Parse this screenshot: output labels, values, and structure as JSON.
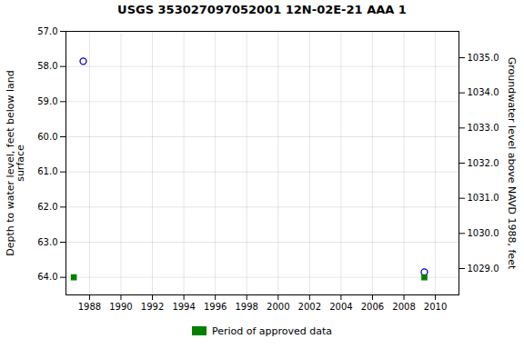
{
  "chart_data": {
    "type": "scatter",
    "title": "USGS 353027097052001 12N-02E-21 AAA 1",
    "ylabel": "Depth to water level, feet below land\nsurface",
    "y2label": "Groundwater level above NAVD 1988, feet",
    "x": [
      1987.0,
      1987.6,
      2009.3
    ],
    "series": [
      {
        "color": "#0000cc",
        "marker": "circle",
        "values": [
          null,
          57.85,
          63.85
        ]
      },
      {
        "name": "Period of approved data",
        "color": "#008000",
        "marker": "square",
        "values": [
          64.0,
          null,
          64.0
        ]
      }
    ],
    "xlim": [
      1986.5,
      2011.5
    ],
    "xticks": [
      1988,
      1990,
      1992,
      1994,
      1996,
      1998,
      2000,
      2002,
      2004,
      2006,
      2008,
      2010
    ],
    "ylim": [
      64.5,
      57.0
    ],
    "yticks": [
      {
        "value": 57.0,
        "label": "57.0"
      },
      {
        "value": 58.0,
        "label": "58.0"
      },
      {
        "value": 59.0,
        "label": "59.0"
      },
      {
        "value": 60.0,
        "label": "60.0"
      },
      {
        "value": 61.0,
        "label": "61.0"
      },
      {
        "value": 62.0,
        "label": "62.0"
      },
      {
        "value": 63.0,
        "label": "63.0"
      },
      {
        "value": 64.0,
        "label": "64.0"
      }
    ],
    "y2lim": [
      1028.25,
      1035.75
    ],
    "y2ticks": [
      {
        "value": 1029.0,
        "label": "1029.0"
      },
      {
        "value": 1030.0,
        "label": "1030.0"
      },
      {
        "value": 1031.0,
        "label": "1031.0"
      },
      {
        "value": 1032.0,
        "label": "1032.0"
      },
      {
        "value": 1033.0,
        "label": "1033.0"
      },
      {
        "value": 1034.0,
        "label": "1034.0"
      },
      {
        "value": 1035.0,
        "label": "1035.0"
      }
    ],
    "grid": true,
    "legend": "bottom"
  }
}
